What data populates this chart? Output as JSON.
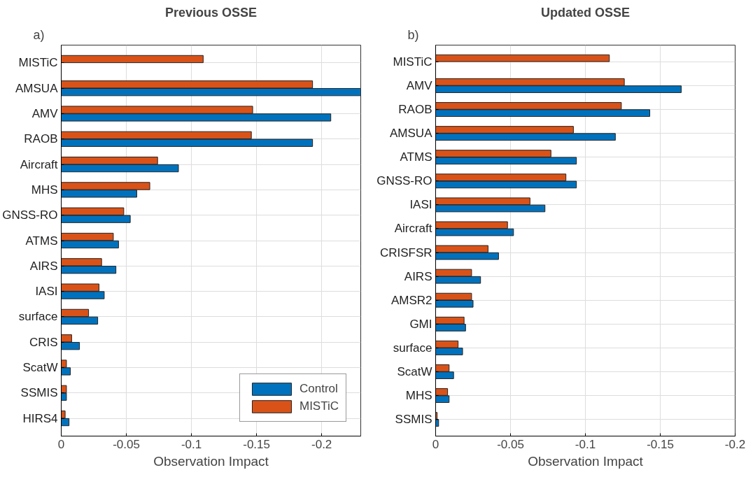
{
  "chart_data": [
    {
      "type": "bar",
      "orientation": "horizontal",
      "title": "Previous OSSE",
      "xlabel": "Observation Impact",
      "annotations": [
        "a)"
      ],
      "categories": [
        "MISTiC",
        "AMSUA",
        "AMV",
        "RAOB",
        "Aircraft",
        "MHS",
        "GNSS-RO",
        "ATMS",
        "AIRS",
        "IASI",
        "surface",
        "CRIS",
        "ScatW",
        "SSMIS",
        "HIRS4"
      ],
      "series": [
        {
          "name": "Control",
          "color": "#0072bd",
          "values": [
            null,
            -0.23,
            -0.207,
            -0.193,
            -0.09,
            -0.058,
            -0.053,
            -0.044,
            -0.042,
            -0.033,
            -0.028,
            -0.014,
            -0.007,
            -0.004,
            -0.006
          ]
        },
        {
          "name": "MISTiC",
          "color": "#d95319",
          "values": [
            -0.109,
            -0.193,
            -0.147,
            -0.146,
            -0.074,
            -0.068,
            -0.048,
            -0.04,
            -0.031,
            -0.029,
            -0.021,
            -0.008,
            -0.004,
            -0.004,
            -0.003
          ]
        }
      ],
      "xlim": [
        0,
        -0.23
      ],
      "xticks": [
        0,
        -0.05,
        -0.1,
        -0.15,
        -0.2
      ],
      "grid": true,
      "legend": "bottom right"
    },
    {
      "type": "bar",
      "orientation": "horizontal",
      "title": "Updated OSSE",
      "xlabel": "Observation Impact",
      "annotations": [
        "b)"
      ],
      "categories": [
        "MISTiC",
        "AMV",
        "RAOB",
        "AMSUA",
        "ATMS",
        "GNSS-RO",
        "IASI",
        "Aircraft",
        "CRISFSR",
        "AIRS",
        "AMSR2",
        "GMI",
        "surface",
        "ScatW",
        "MHS",
        "SSMIS"
      ],
      "series": [
        {
          "color": "#0072bd",
          "values": [
            null,
            -0.164,
            -0.143,
            -0.12,
            -0.094,
            -0.094,
            -0.073,
            -0.052,
            -0.042,
            -0.03,
            -0.025,
            -0.02,
            -0.018,
            -0.012,
            -0.009,
            -0.002
          ]
        },
        {
          "color": "#d95319",
          "values": [
            -0.116,
            -0.126,
            -0.124,
            -0.092,
            -0.077,
            -0.087,
            -0.063,
            -0.048,
            -0.035,
            -0.024,
            -0.024,
            -0.019,
            -0.015,
            -0.009,
            -0.008,
            -0.001
          ]
        }
      ],
      "xlim": [
        0,
        -0.2
      ],
      "xticks": [
        0,
        -0.05,
        -0.1,
        -0.15,
        -0.2
      ],
      "grid": true,
      "legend": false
    }
  ]
}
